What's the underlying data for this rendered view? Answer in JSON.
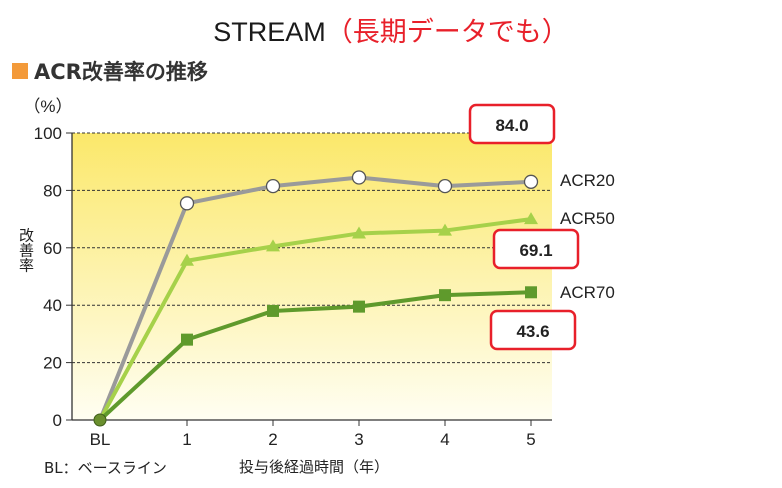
{
  "header": {
    "title": "STREAM",
    "title_note": "（長期データでも）",
    "subtitle": "ACR改善率の推移"
  },
  "footnote": "BL：ベースライン",
  "colors": {
    "acr20": "#9a9a9a",
    "acr50": "#a6d14a",
    "acr70": "#5f9a2c",
    "callout_border": "#e8202a",
    "accent_square": "#f39a3a",
    "plot_top": "#fbe86a",
    "plot_bottom": "#fffef2"
  },
  "chart_data": {
    "type": "line",
    "title": "ACR改善率の推移",
    "xlabel": "投与後経過時間（年）",
    "ylabel": "改善率",
    "yunit": "（%）",
    "categories": [
      "BL",
      "1",
      "2",
      "3",
      "4",
      "5"
    ],
    "ylim": [
      0,
      100
    ],
    "yticks": [
      "0",
      "20",
      "40",
      "60",
      "80",
      "100"
    ],
    "grid": true,
    "legend_placement": "right, at line ends",
    "series": [
      {
        "name": "ACR20",
        "marker": "circle",
        "values": [
          0,
          75.5,
          81.5,
          84.5,
          81.5,
          83
        ]
      },
      {
        "name": "ACR50",
        "marker": "triangle",
        "values": [
          0,
          55.5,
          60.5,
          65,
          66,
          70
        ]
      },
      {
        "name": "ACR70",
        "marker": "square",
        "values": [
          0,
          28,
          38,
          39.5,
          43.5,
          44.5
        ]
      }
    ],
    "callouts": [
      "84.0",
      "69.1",
      "43.6"
    ]
  }
}
